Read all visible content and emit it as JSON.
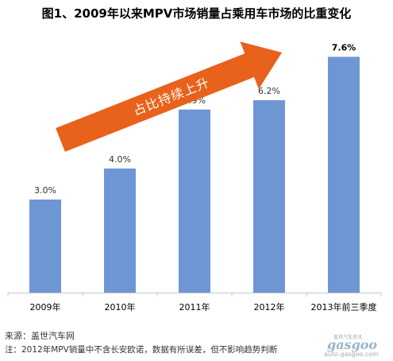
{
  "chart_data": {
    "type": "bar",
    "title": "图1、2009年以来MPV市场销量占乘用车市场的比重变化",
    "categories": [
      "2009年",
      "2010年",
      "2011年",
      "2012年",
      "2013年前三季度"
    ],
    "values": [
      3.0,
      4.0,
      5.9,
      6.2,
      7.6
    ],
    "value_labels": [
      "3.0%",
      "4.0%",
      "5.9%",
      "6.2%",
      "7.6%"
    ],
    "ylim": [
      0,
      8.2
    ],
    "grid": false,
    "annotation": "占比持续上升",
    "colors": {
      "bar": "#6f96d4",
      "arrow": "#e8621c",
      "last_label": "#000000",
      "labels": "#333333"
    }
  },
  "footer": {
    "source": "来源：盖世汽车网",
    "note": "注：2012年MPV销量中不含长安欧诺，数据有所误差，但不影响趋势判断"
  },
  "watermark": {
    "cn": "盖世汽车资讯",
    "logo": "gasgoo",
    "url": "auto.gasgoo.com"
  }
}
